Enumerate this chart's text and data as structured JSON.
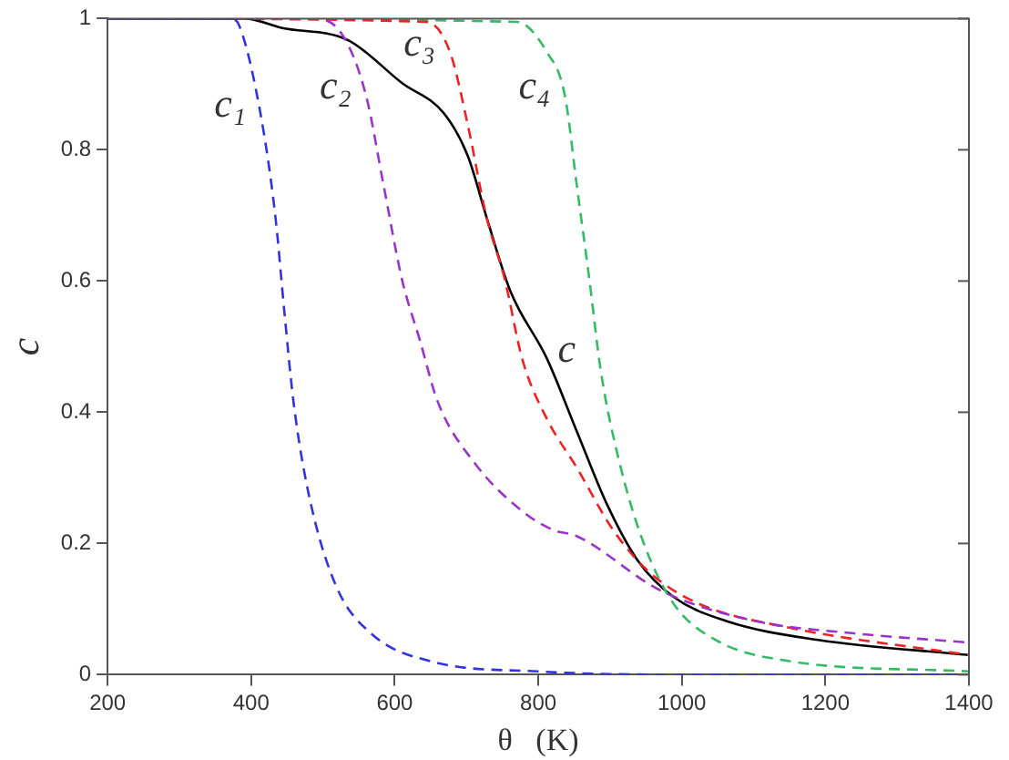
{
  "chart_data": {
    "type": "line",
    "xlabel": "θ   (K)",
    "ylabel": "c",
    "xlim": [
      200,
      1400
    ],
    "xticks": [
      200,
      400,
      600,
      800,
      1000,
      1200,
      1400
    ],
    "ylim": [
      0,
      1
    ],
    "yticks": [
      0,
      0.2,
      0.4,
      0.6,
      0.8,
      1
    ],
    "grid": false,
    "legend": false,
    "marker": "none",
    "line_style": "dashed",
    "series": [
      {
        "name": "c₁",
        "color": "#3333dd",
        "x": [
          200,
          371,
          383,
          413,
          434,
          446,
          459,
          480,
          518,
          568,
          652,
          800,
          1000,
          1400
        ],
        "values": [
          1,
          1,
          0.99,
          0.855,
          0.696,
          0.556,
          0.416,
          0.276,
          0.136,
          0.062,
          0.02,
          0.005,
          0,
          0
        ]
      },
      {
        "name": "c₂",
        "color": "#9933cc",
        "x": [
          200,
          484,
          526,
          560,
          585,
          610,
          635,
          660,
          711,
          778,
          820,
          854,
          971,
          1106,
          1240,
          1400
        ],
        "values": [
          1,
          1,
          0.977,
          0.883,
          0.743,
          0.603,
          0.51,
          0.416,
          0.323,
          0.249,
          0.221,
          0.211,
          0.128,
          0.081,
          0.063,
          0.049
        ]
      },
      {
        "name": "c₃",
        "color": "#ee2222",
        "x": [
          200,
          644,
          677,
          702,
          728,
          753,
          778,
          812,
          854,
          904,
          955,
          1022,
          1148,
          1400
        ],
        "values": [
          1,
          0.995,
          0.949,
          0.837,
          0.697,
          0.604,
          0.48,
          0.39,
          0.315,
          0.221,
          0.156,
          0.109,
          0.072,
          0.03
        ]
      },
      {
        "name": "c₄",
        "color": "#33bb66",
        "x": [
          200,
          770,
          812,
          837,
          854,
          871,
          887,
          913,
          946,
          988,
          1047,
          1148,
          1400
        ],
        "values": [
          1,
          0.995,
          0.949,
          0.883,
          0.743,
          0.604,
          0.464,
          0.324,
          0.203,
          0.109,
          0.053,
          0.021,
          0.005
        ]
      },
      {
        "name": "c",
        "color": "#000000",
        "line_style": "solid",
        "x": [
          200,
          392,
          442,
          535,
          610,
          669,
          702,
          728,
          761,
          812,
          854,
          896,
          938,
          988,
          1064,
          1190,
          1400
        ],
        "values": [
          1,
          1,
          0.986,
          0.967,
          0.902,
          0.855,
          0.79,
          0.697,
          0.585,
          0.482,
          0.37,
          0.259,
          0.175,
          0.119,
          0.081,
          0.053,
          0.03
        ]
      }
    ]
  }
}
